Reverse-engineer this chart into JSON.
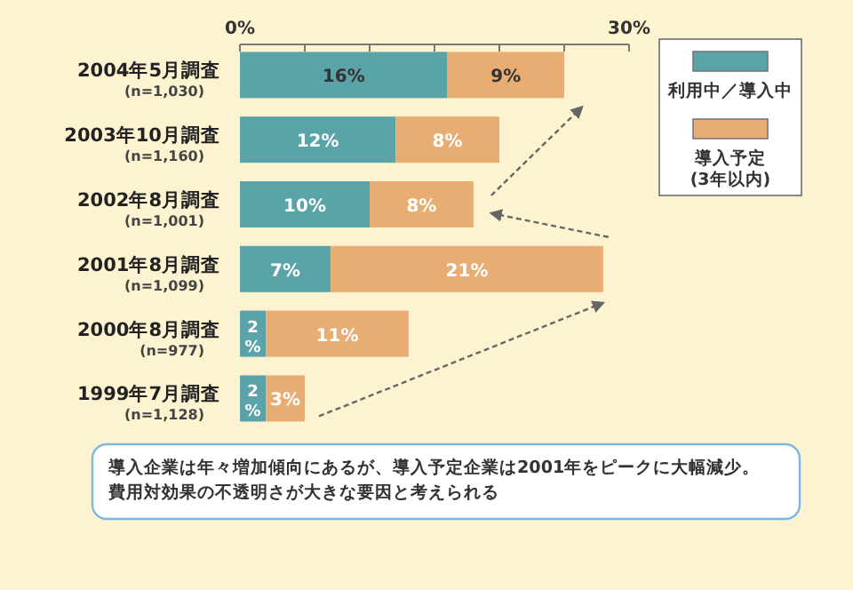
{
  "chart_data": {
    "type": "bar",
    "orientation": "horizontal",
    "stacked": true,
    "categories": [
      "2004年5月調査\n(n=1,030)",
      "2003年10月調査\n(n=1,160)",
      "2002年8月調査\n(n=1,001)",
      "2001年8月調査\n(n=1,099)",
      "2000年8月調査\n(n=977)",
      "1999年7月調査\n(n=1,128)"
    ],
    "series": [
      {
        "name": "利用中／導入中",
        "color": "#5aa3a8",
        "values": [
          16,
          12,
          10,
          7,
          2,
          2
        ],
        "value_labels": [
          "16%",
          "12%",
          "10%",
          "7%",
          "2%",
          "2%"
        ]
      },
      {
        "name": "導入予定\n(3年以内)",
        "color": "#e8ad72",
        "values": [
          9,
          8,
          8,
          21,
          11,
          3
        ],
        "value_labels": [
          "9%",
          "8%",
          "8%",
          "21%",
          "11%",
          "3%"
        ]
      }
    ],
    "xlim": [
      0,
      30
    ],
    "xticks": [
      {
        "value": 0,
        "label": "0%"
      },
      {
        "value": 5,
        "label": null
      },
      {
        "value": 10,
        "label": null
      },
      {
        "value": 15,
        "label": null
      },
      {
        "value": 20,
        "label": null
      },
      {
        "value": 25,
        "label": null
      },
      {
        "value": 30,
        "label": "30%"
      }
    ],
    "grid": false,
    "legend": "right",
    "annotations": [
      "導入企業は年々増加傾向にあるが、導入予定企業は2001年をピークに大幅減少。",
      "費用対効果の不透明さが大きな要因と考えられる"
    ]
  }
}
